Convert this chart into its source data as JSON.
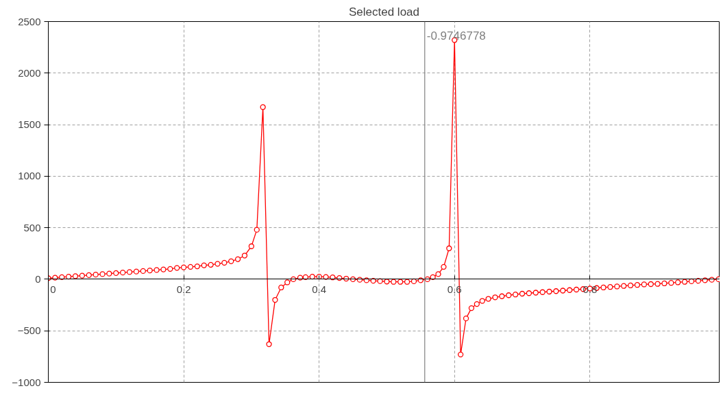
{
  "chart_data": {
    "type": "line",
    "title": "Selected load",
    "x": [
      0,
      0.01,
      0.02,
      0.03,
      0.04,
      0.05,
      0.06,
      0.07,
      0.08,
      0.09,
      0.1,
      0.11,
      0.12,
      0.13,
      0.14,
      0.15,
      0.16,
      0.17,
      0.18,
      0.19,
      0.2,
      0.21,
      0.22,
      0.23,
      0.24,
      0.25,
      0.26,
      0.27,
      0.28,
      0.29,
      0.3,
      0.308,
      0.317,
      0.326,
      0.335,
      0.344,
      0.353,
      0.362,
      0.372,
      0.38,
      0.39,
      0.4,
      0.41,
      0.42,
      0.43,
      0.44,
      0.45,
      0.46,
      0.47,
      0.48,
      0.49,
      0.5,
      0.51,
      0.52,
      0.53,
      0.54,
      0.55,
      0.56,
      0.568,
      0.576,
      0.584,
      0.592,
      0.6,
      0.609,
      0.617,
      0.625,
      0.633,
      0.641,
      0.65,
      0.66,
      0.67,
      0.68,
      0.69,
      0.7,
      0.71,
      0.72,
      0.73,
      0.74,
      0.75,
      0.76,
      0.77,
      0.78,
      0.79,
      0.8,
      0.81,
      0.82,
      0.83,
      0.84,
      0.85,
      0.86,
      0.87,
      0.88,
      0.89,
      0.9,
      0.91,
      0.92,
      0.93,
      0.94,
      0.95,
      0.96,
      0.97,
      0.98,
      0.99
    ],
    "series": [
      {
        "color": "#ff0000",
        "values": [
          10,
          15,
          20,
          25,
          30,
          35,
          40,
          45,
          50,
          55,
          60,
          65,
          70,
          75,
          80,
          85,
          90,
          95,
          100,
          110,
          115,
          120,
          125,
          135,
          140,
          150,
          160,
          175,
          195,
          230,
          320,
          480,
          1670,
          -630,
          -200,
          -80,
          -30,
          0,
          15,
          20,
          25,
          25,
          22,
          18,
          12,
          6,
          0,
          -5,
          -10,
          -15,
          -18,
          -22,
          -25,
          -25,
          -25,
          -20,
          -10,
          0,
          20,
          50,
          120,
          300,
          2320,
          -730,
          -380,
          -280,
          -240,
          -210,
          -190,
          -175,
          -165,
          -155,
          -148,
          -140,
          -135,
          -130,
          -125,
          -120,
          -115,
          -110,
          -105,
          -100,
          -95,
          -90,
          -85,
          -80,
          -75,
          -70,
          -65,
          -60,
          -55,
          -50,
          -47,
          -45,
          -40,
          -35,
          -30,
          -25,
          -20,
          -15,
          -10,
          -5,
          0
        ]
      }
    ],
    "xlim": [
      0,
      0.992
    ],
    "ylim": [
      -1000,
      2500
    ],
    "xticks": [
      0,
      0.2,
      0.4,
      0.6,
      0.8
    ],
    "yticks": [
      -1000,
      -500,
      0,
      500,
      1000,
      1500,
      2000,
      2500
    ],
    "ref_lines": [
      {
        "axis": "x",
        "value": 0.556,
        "color": "#808080"
      }
    ],
    "annotations": [
      "-0.9746778"
    ],
    "grid": true,
    "marker": "circle",
    "line_style": "solid"
  }
}
